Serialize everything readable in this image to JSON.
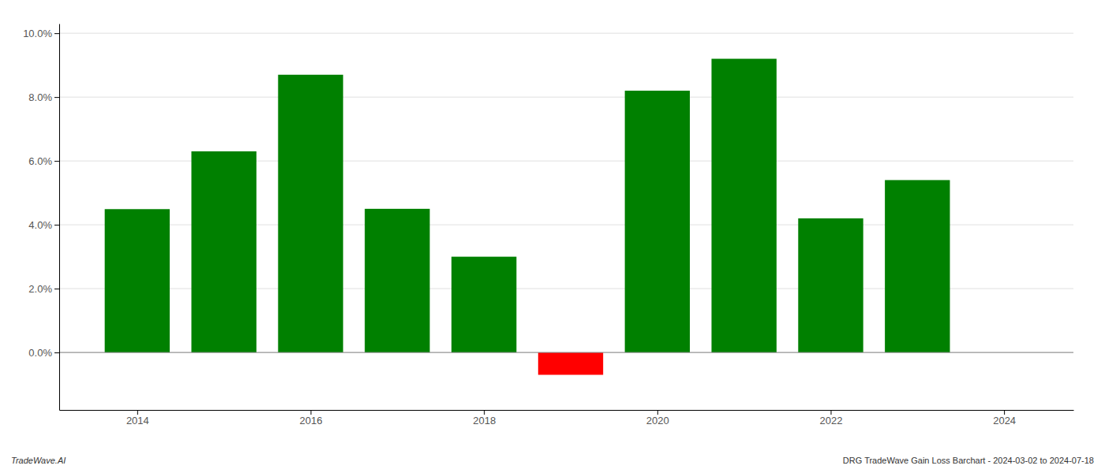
{
  "chart_data": {
    "type": "bar",
    "x": [
      2014,
      2015,
      2016,
      2017,
      2018,
      2019,
      2020,
      2021,
      2022,
      2023
    ],
    "values": [
      0.0449,
      0.063,
      0.087,
      0.045,
      0.03,
      -0.007,
      0.082,
      0.092,
      0.042,
      0.054
    ],
    "colors": [
      "#008000",
      "#008000",
      "#008000",
      "#008000",
      "#008000",
      "#ff0000",
      "#008000",
      "#008000",
      "#008000",
      "#008000"
    ],
    "xlim": [
      2013.1,
      2024.8
    ],
    "ylim": [
      -0.018,
      0.103
    ],
    "xticks": [
      2014,
      2016,
      2018,
      2020,
      2022,
      2024
    ],
    "yticks": [
      {
        "value": 0.0,
        "label": "0.0%"
      },
      {
        "value": 0.02,
        "label": "2.0%"
      },
      {
        "value": 0.04,
        "label": "4.0%"
      },
      {
        "value": 0.06,
        "label": "6.0%"
      },
      {
        "value": 0.08,
        "label": "8.0%"
      },
      {
        "value": 0.1,
        "label": "10.0%"
      }
    ],
    "grid": true,
    "annotations": [
      "TradeWave.AI",
      "DRG TradeWave Gain Loss Barchart - 2024-03-02 to 2024-07-18"
    ]
  }
}
